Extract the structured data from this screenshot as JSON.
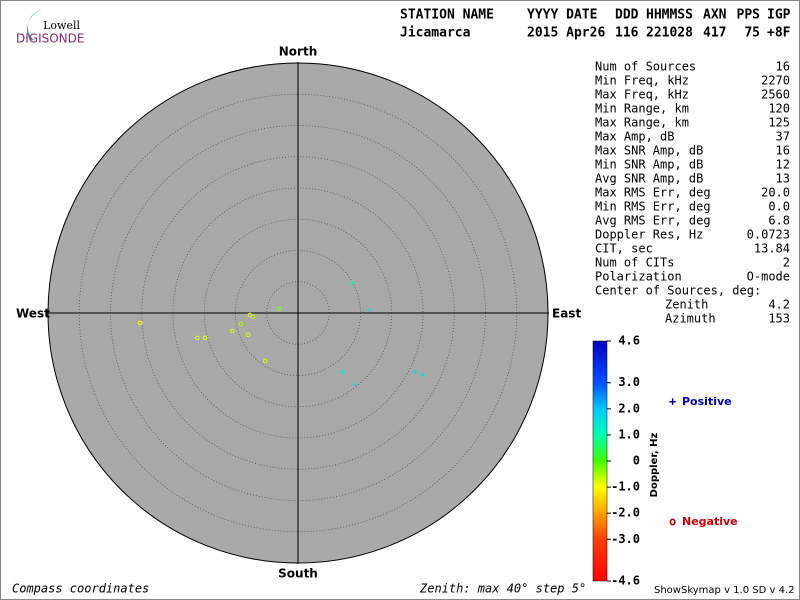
{
  "header": {
    "columns": [
      "STATION NAME",
      "YYYY DATE",
      "DDD",
      "HHMMSS",
      "AXN",
      "PPS",
      "IGP"
    ],
    "values": [
      "Jicamarca",
      "2015 Apr26",
      "116",
      "221028",
      "417",
      "75",
      "+8F"
    ]
  },
  "logo": {
    "top": "Lowell",
    "bottom": "DIGISONDE"
  },
  "chart_data": {
    "type": "skymap",
    "directions": {
      "north": "North",
      "south": "South",
      "east": "East",
      "west": "West"
    },
    "rlim": [
      0,
      40
    ],
    "rticks": [
      5,
      10,
      15,
      20,
      25,
      30,
      35,
      40
    ],
    "zlim": [
      -4.6,
      4.6
    ],
    "zticks": [
      4.6,
      {
        "value": 3,
        "label": "3.0"
      },
      {
        "value": 2,
        "label": "2.0"
      },
      {
        "value": 1,
        "label": "1.0"
      },
      0,
      {
        "value": -1,
        "label": "-1.0"
      },
      {
        "value": -2,
        "label": "-2.0"
      },
      {
        "value": -3,
        "label": "-3.0"
      },
      -4.6
    ],
    "colorbar_label": "Doppler, Hz",
    "colormap": [
      {
        "value": -4.6,
        "color": "#ff0000"
      },
      {
        "value": -3,
        "color": "#ff4000"
      },
      {
        "value": -2,
        "color": "#ffa000"
      },
      {
        "value": -1,
        "color": "#ffff00"
      },
      {
        "value": 0,
        "color": "#40ff00"
      },
      {
        "value": 1,
        "color": "#00ffb0"
      },
      {
        "value": 2,
        "color": "#00c8ff"
      },
      {
        "value": 3,
        "color": "#0050ff"
      },
      {
        "value": 4.6,
        "color": "#0000c8"
      }
    ],
    "series": [
      {
        "name": "Positive",
        "symbol": "+",
        "color": "#0000c0",
        "zenith": [
          9.9,
          11.4,
          11.8,
          14.6,
          21.0,
          22.3
        ],
        "azimuth": [
          60.9,
          87.6,
          143.3,
          141.2,
          116.8,
          116.4
        ],
        "doppler": [
          1.1,
          1.5,
          1.4,
          1.4,
          1.6,
          1.6
        ]
      },
      {
        "name": "Negative",
        "symbol": "o",
        "color": "#d00000",
        "zenith": [
          25.3,
          16.6,
          15.4,
          10.9,
          9.3,
          8.7,
          7.7,
          7.2,
          9.3,
          3.1
        ],
        "azimuth": [
          266.4,
          256.1,
          255.0,
          254.7,
          259.1,
          246.3,
          267.6,
          265.0,
          214.5,
          281.9
        ],
        "doppler": [
          -1.0,
          -0.8,
          -0.8,
          -0.8,
          -0.5,
          -0.8,
          -0.8,
          -0.6,
          -0.8,
          -0.3
        ]
      }
    ]
  },
  "stats": {
    "rows": [
      [
        "Num of Sources",
        "16"
      ],
      [
        "Min Freq, kHz",
        "2270"
      ],
      [
        "Max Freq, kHz",
        "2560"
      ],
      [
        "Min Range, km",
        "120"
      ],
      [
        "Max Range, km",
        "125"
      ],
      [
        "Max Amp, dB",
        "37"
      ],
      [
        "Max SNR Amp, dB",
        "16"
      ],
      [
        "Min SNR Amp, dB",
        "12"
      ],
      [
        "Avg SNR Amp, dB",
        "13"
      ],
      [
        "Max RMS Err, deg",
        "20.0"
      ],
      [
        "Min RMS Err, deg",
        "0.0"
      ],
      [
        "Avg RMS Err, deg",
        "6.8"
      ],
      [
        "Doppler Res, Hz",
        "0.0723"
      ],
      [
        "CIT, sec",
        "13.84"
      ],
      [
        "Num of CITs",
        "2"
      ],
      [
        "Polarization",
        "O-mode"
      ]
    ],
    "center_label": "Center of Sources, deg:",
    "center_rows": [
      [
        "Zenith",
        "4.2"
      ],
      [
        "Azimuth",
        "153"
      ]
    ]
  },
  "footer": {
    "left": "Compass coordinates",
    "middle": "Zenith: max 40°  step 5°",
    "right": "ShowSkymap v 1.0  SD v 4.2"
  }
}
